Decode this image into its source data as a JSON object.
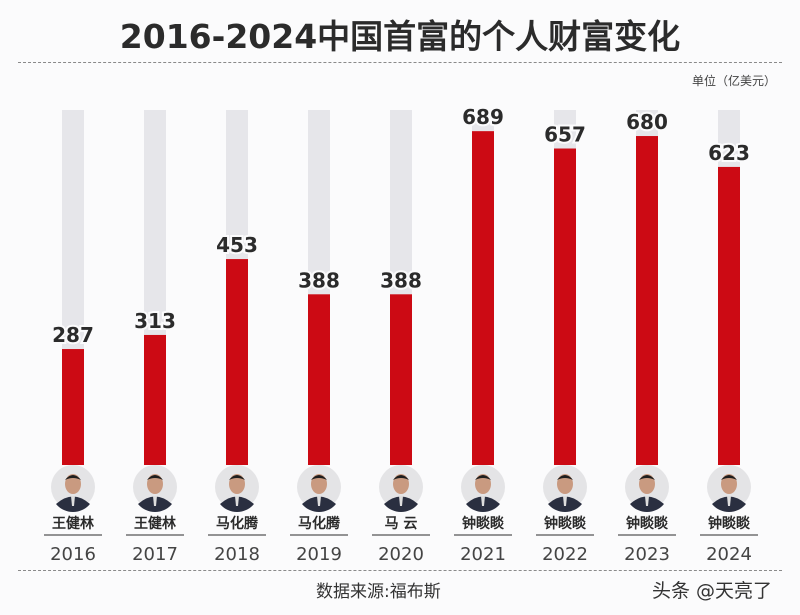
{
  "chart_data": {
    "type": "bar",
    "title": "2016-2024中国首富的个人财富变化",
    "unit_label": "单位（亿美元）",
    "categories": [
      "2016",
      "2017",
      "2018",
      "2019",
      "2020",
      "2021",
      "2022",
      "2023",
      "2024"
    ],
    "people": [
      "王健林",
      "王健林",
      "马化腾",
      "马化腾",
      "马 云",
      "钟睒睒",
      "钟睒睒",
      "钟睒睒",
      "钟睒睒"
    ],
    "values": [
      287,
      313,
      453,
      388,
      388,
      689,
      657,
      680,
      623
    ],
    "xlabel": "",
    "ylabel": "",
    "grid": false,
    "colors": {
      "bar": "#cc0a14",
      "track": "#e6e6ea",
      "text": "#2b2b2b"
    }
  },
  "footer": {
    "source": "数据来源:福布斯",
    "watermark": "头条 @天亮了"
  }
}
